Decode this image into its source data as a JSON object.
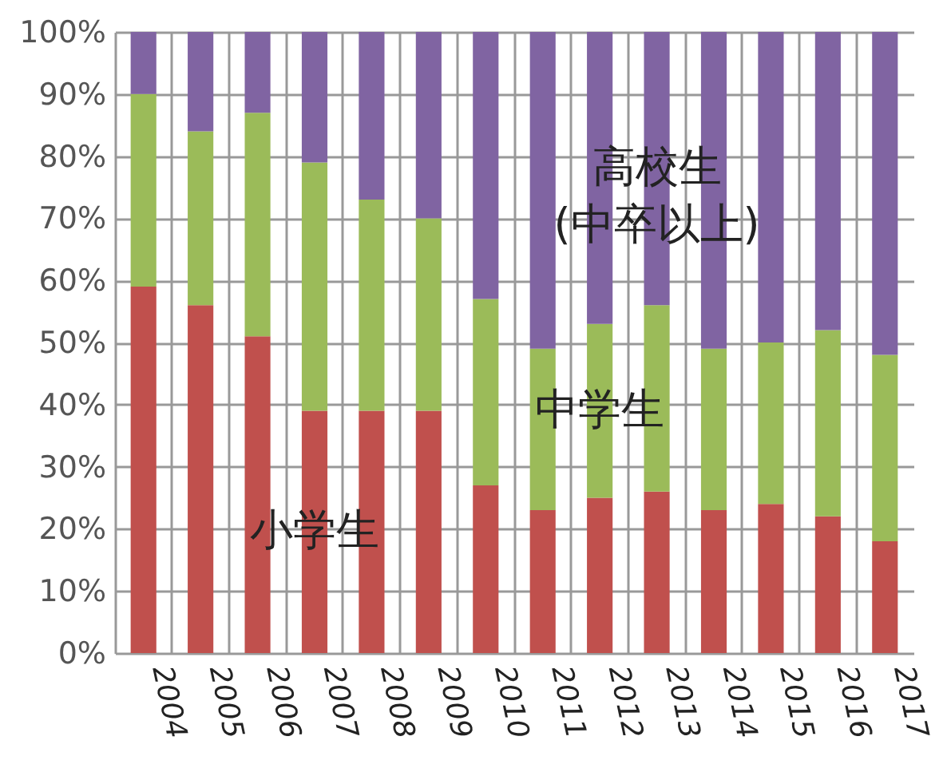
{
  "chart_data": {
    "type": "bar",
    "stacked": true,
    "categories": [
      "2004",
      "2005",
      "2006",
      "2007",
      "2008",
      "2009",
      "2010",
      "2011",
      "2012",
      "2013",
      "2014",
      "2015",
      "2016",
      "2017"
    ],
    "series": [
      {
        "name": "小学生",
        "color": "#c0504d",
        "values": [
          59,
          56,
          51,
          39,
          39,
          39,
          27,
          23,
          25,
          26,
          23,
          24,
          22,
          18
        ]
      },
      {
        "name": "中学生",
        "color": "#9bbb59",
        "values": [
          31,
          28,
          36,
          40,
          34,
          31,
          30,
          26,
          28,
          30,
          26,
          26,
          30,
          30
        ]
      },
      {
        "name": "高校生\n(中卒以上)",
        "color": "#8064a2",
        "values": [
          10,
          16,
          13,
          21,
          27,
          30,
          43,
          51,
          47,
          44,
          51,
          50,
          48,
          52
        ]
      }
    ],
    "ylim": [
      0,
      100
    ],
    "yticks": [
      {
        "value": 0,
        "label": "0%"
      },
      {
        "value": 10,
        "label": "10%"
      },
      {
        "value": 20,
        "label": "20%"
      },
      {
        "value": 30,
        "label": "30%"
      },
      {
        "value": 40,
        "label": "40%"
      },
      {
        "value": 50,
        "label": "50%"
      },
      {
        "value": 60,
        "label": "60%"
      },
      {
        "value": 70,
        "label": "70%"
      },
      {
        "value": 80,
        "label": "80%"
      },
      {
        "value": 90,
        "label": "90%"
      },
      {
        "value": 100,
        "label": "100%"
      }
    ],
    "grid": true,
    "legend": false
  }
}
